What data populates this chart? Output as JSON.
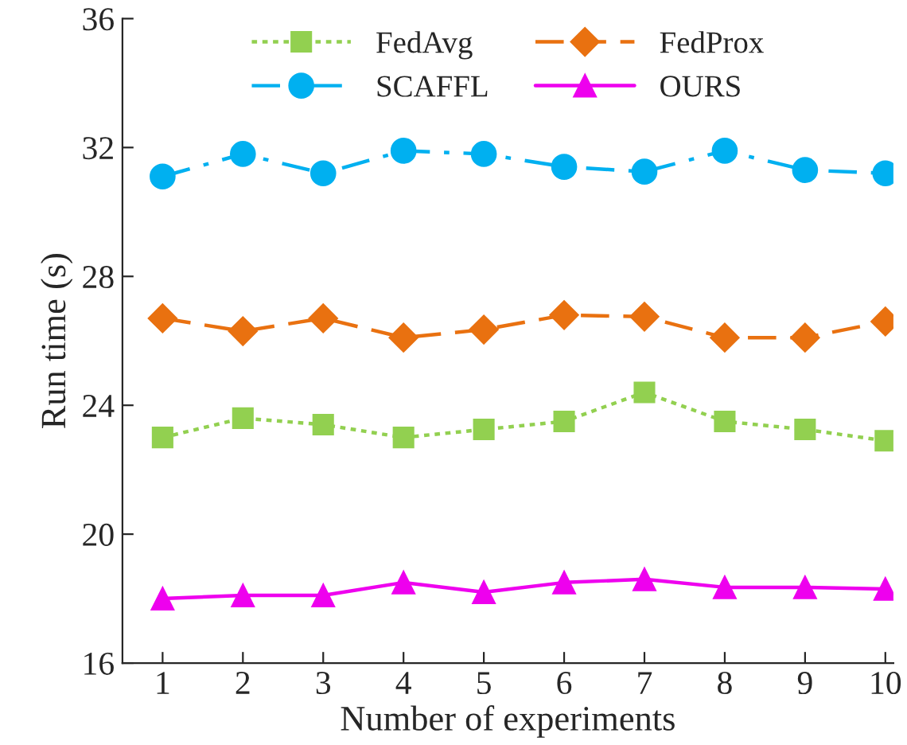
{
  "chart_data": {
    "type": "line",
    "xlabel": "Number of experiments",
    "ylabel": "Run time (s)",
    "x": [
      1,
      2,
      3,
      4,
      5,
      6,
      7,
      8,
      9,
      10
    ],
    "series": [
      {
        "name": "FedAvg",
        "color": "#92d050",
        "marker": "square",
        "line_style": "dotted",
        "values": [
          23.0,
          23.6,
          23.4,
          23.0,
          23.25,
          23.5,
          24.4,
          23.5,
          23.25,
          22.9
        ]
      },
      {
        "name": "SCAFFL",
        "color": "#00b0f0",
        "marker": "circle",
        "line_style": "dashdot",
        "values": [
          31.1,
          31.8,
          31.2,
          31.9,
          31.8,
          31.4,
          31.25,
          31.9,
          31.3,
          31.2
        ]
      },
      {
        "name": "FedProx",
        "color": "#e97110",
        "marker": "diamond",
        "line_style": "dashed",
        "values": [
          26.7,
          26.3,
          26.7,
          26.1,
          26.35,
          26.8,
          26.75,
          26.1,
          26.1,
          26.6
        ]
      },
      {
        "name": "OURS",
        "color": "#ee00ee",
        "marker": "triangle",
        "line_style": "solid",
        "values": [
          18.0,
          18.1,
          18.1,
          18.5,
          18.2,
          18.5,
          18.6,
          18.35,
          18.35,
          18.3
        ]
      }
    ],
    "xlim": [
      0.5,
      10.1
    ],
    "xticks": [
      1,
      2,
      3,
      4,
      5,
      6,
      7,
      8,
      9,
      10
    ],
    "ylim": [
      16,
      36
    ],
    "yticks": [
      16,
      20,
      24,
      28,
      32,
      36
    ],
    "grid": false,
    "legend": "top"
  }
}
